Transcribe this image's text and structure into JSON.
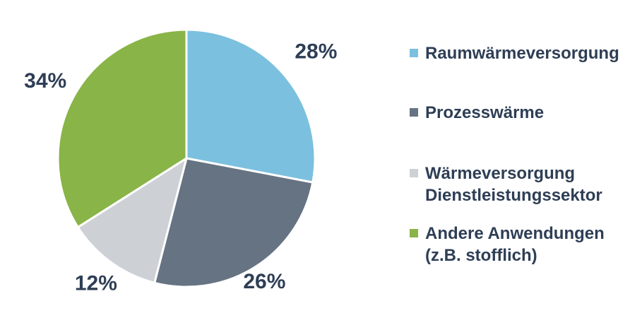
{
  "chart_data": {
    "type": "pie",
    "categories": [
      "Raumwärmeversorgung",
      "Prozesswärme",
      "Wärmeversorgung\nDienstleistungssektor",
      "Andere Anwendungen\n(z.B. stofflich)"
    ],
    "values": [
      28,
      26,
      12,
      34
    ],
    "value_labels": [
      "28%",
      "26%",
      "12%",
      "34%"
    ],
    "colors": [
      "#7bc0de",
      "#667383",
      "#cdd1d6",
      "#89b447"
    ],
    "legend_position": "right"
  }
}
